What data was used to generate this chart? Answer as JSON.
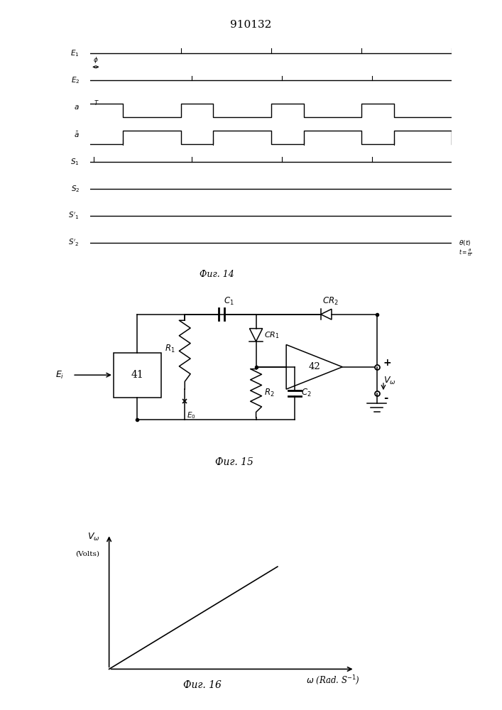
{
  "title": "910132",
  "title_fontsize": 11,
  "bg_color": "#ffffff",
  "fig14_label": "Фиг. 14",
  "fig15_label": "Фиг. 15",
  "fig16_label": "Фиг. 16"
}
